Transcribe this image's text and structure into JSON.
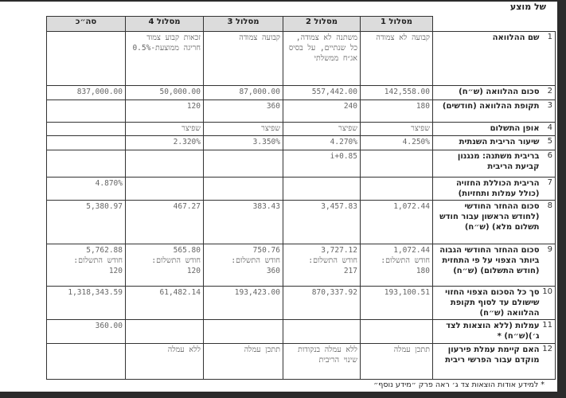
{
  "title": "של מוצע",
  "columns": [
    "מסלול 1",
    "מסלול 2",
    "מסלול 3",
    "מסלול 4",
    "סה״כ"
  ],
  "rows": [
    {
      "num": "1",
      "label": "שם ההלוואה",
      "values": [
        "קבועה לא צמודה",
        "משתנה לא צמודה, כל שנתיים, על בסיס אג״ח ממשלתי",
        "קבועה צמודה",
        "זכאות קבוע צמוד חריגה ממוצעת-0.5%",
        ""
      ]
    },
    {
      "num": "2",
      "label": "סכום ההלוואה (ש״ח)",
      "values": [
        "142,558.00",
        "557,442.00",
        "87,000.00",
        "50,000.00",
        "837,000.00"
      ]
    },
    {
      "num": "3",
      "label": "תקופת ההלוואה (חודשים)",
      "values": [
        "180",
        "240",
        "360",
        "120",
        ""
      ]
    },
    {
      "num": "4",
      "label": "אופן התשלום",
      "values": [
        "שפיצר",
        "שפיצר",
        "שפיצר",
        "שפיצר",
        ""
      ]
    },
    {
      "num": "5",
      "label": "שיעור הריבית השנתית",
      "values": [
        "4.250%",
        "4.270%",
        "3.350%",
        "2.320%",
        ""
      ]
    },
    {
      "num": "6",
      "label": "בריבית משתנה: מנגנון קביעת הריבית",
      "values": [
        "",
        "i+0.85",
        "",
        "",
        ""
      ]
    },
    {
      "num": "7",
      "label": "הריבית הכוללת החזויה (כולל עמלות ותחזיות)",
      "values": [
        "",
        "",
        "",
        "",
        "4.870%"
      ]
    },
    {
      "num": "8",
      "label": "סכום ההחזר החודשי (לחודש הראשון עבור חודש תשלום מלא) (ש״ח)",
      "values": [
        "1,072.44",
        "3,457.83",
        "383.43",
        "467.27",
        "5,380.97"
      ]
    },
    {
      "num": "9",
      "label": "סכום ההחזר החודשי הגבוה ביותר הצפוי על פי התחזית (חודש התשלום) (ש״ח)",
      "values": [
        "1,072.44\nחודש התשלום:\n180",
        "3,727.12\nחודש התשלום:\n217",
        "750.76\nחודש התשלום:\n360",
        "565.80\nחודש התשלום:\n120",
        "5,762.88\nחודש התשלום:\n120"
      ]
    },
    {
      "num": "10",
      "label": "סך כל הסכום הצפוי החזוי שישולם עד לסוף תקופת ההלוואה (ש״ח)",
      "values": [
        "193,100.51",
        "870,337.92",
        "193,423.00",
        "61,482.14",
        "1,318,343.59"
      ]
    },
    {
      "num": "11",
      "label": "עמלות (ללא הוצאות לצד ג׳)(ש״ח) *",
      "values": [
        "",
        "",
        "",
        "",
        "360.00"
      ]
    },
    {
      "num": "12",
      "label": "האם קיימת עמלת פירעון מוקדם עבור הפרשי ריבית",
      "values": [
        "תתכן עמלה",
        "ללא עמלה בנקודות שינוי הריבית",
        "תתכן עמלה",
        "ללא עמלה",
        ""
      ]
    }
  ],
  "footnote": "*   למידע אודות הוצאות צד ג׳ ראה פרק ״מידע נוסף״"
}
